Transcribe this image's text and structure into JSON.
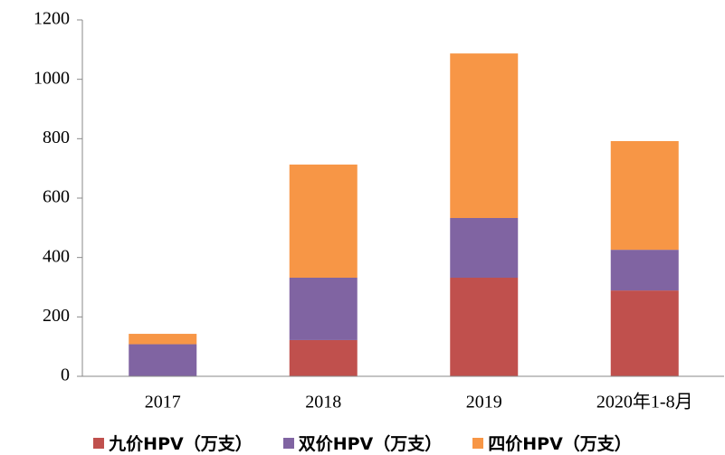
{
  "chart_data": {
    "type": "stacked_bar",
    "categories": [
      "2017",
      "2018",
      "2019",
      "2020年1-8月"
    ],
    "series": [
      {
        "name": "九价HPV（万支）",
        "color": "#c0504d",
        "values": [
          0,
          122,
          332,
          289
        ]
      },
      {
        "name": "双价HPV（万支）",
        "color": "#8064a2",
        "values": [
          108,
          210,
          201,
          137
        ]
      },
      {
        "name": "四价HPV（万支）",
        "color": "#f79646",
        "values": [
          35,
          381,
          554,
          366
        ]
      }
    ],
    "ylim": [
      0,
      1200
    ],
    "yticks": [
      0,
      200,
      400,
      600,
      800,
      1000,
      1200
    ],
    "grid": false
  }
}
